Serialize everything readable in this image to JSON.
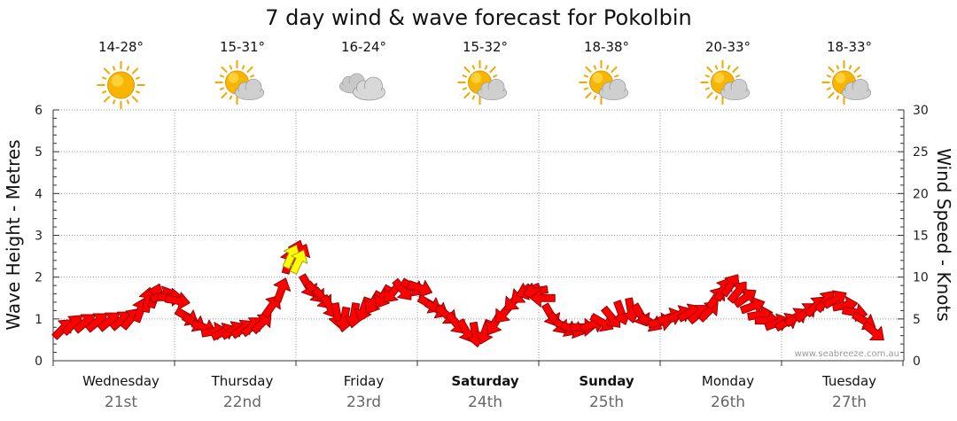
{
  "chart_data": {
    "type": "scatter",
    "title": "7 day wind & wave forecast for Pokolbin",
    "y_left_label": "Wave Height - Metres",
    "y_right_label": "Wind Speed - Knots",
    "y_left_range": [
      0,
      6
    ],
    "y_left_ticks": [
      "0",
      "1",
      "2",
      "3",
      "4",
      "5",
      "6"
    ],
    "y_right_range": [
      0,
      30
    ],
    "y_right_ticks": [
      "0",
      "5",
      "10",
      "15",
      "20",
      "25",
      "30"
    ],
    "grid": true,
    "credit": "www.seabreeze.com.au",
    "days": [
      {
        "name": "Wednesday",
        "date": "21st",
        "bold": false,
        "temp": "14-28°",
        "icon": "sunny-icon"
      },
      {
        "name": "Thursday",
        "date": "22nd",
        "bold": false,
        "temp": "15-31°",
        "icon": "partly-cloudy-icon"
      },
      {
        "name": "Friday",
        "date": "23rd",
        "bold": false,
        "temp": "16-24°",
        "icon": "cloudy-icon"
      },
      {
        "name": "Saturday",
        "date": "24th",
        "bold": true,
        "temp": "15-32°",
        "icon": "partly-cloudy-icon"
      },
      {
        "name": "Sunday",
        "date": "25th",
        "bold": true,
        "temp": "18-38°",
        "icon": "partly-cloudy-icon"
      },
      {
        "name": "Monday",
        "date": "26th",
        "bold": false,
        "temp": "20-33°",
        "icon": "partly-cloudy-icon"
      },
      {
        "name": "Tuesday",
        "date": "27th",
        "bold": false,
        "temp": "18-33°",
        "icon": "partly-cloudy-icon"
      }
    ],
    "series": [
      {
        "x_unit": "days from start of Wednesday",
        "y_unit": "knots",
        "points": [
          {
            "x": 0.02,
            "y": 3.8,
            "dir": 225
          },
          {
            "x": 0.1,
            "y": 4.3,
            "dir": 225
          },
          {
            "x": 0.2,
            "y": 4.5,
            "dir": 230
          },
          {
            "x": 0.3,
            "y": 4.6,
            "dir": 230
          },
          {
            "x": 0.4,
            "y": 4.7,
            "dir": 230
          },
          {
            "x": 0.5,
            "y": 4.8,
            "dir": 230
          },
          {
            "x": 0.58,
            "y": 5,
            "dir": 220
          },
          {
            "x": 0.66,
            "y": 6,
            "dir": 200
          },
          {
            "x": 0.72,
            "y": 7.2,
            "dir": 190
          },
          {
            "x": 0.78,
            "y": 7.7,
            "dir": 200
          },
          {
            "x": 0.84,
            "y": 7.8,
            "dir": 250
          },
          {
            "x": 0.9,
            "y": 7.6,
            "dir": 270
          },
          {
            "x": 0.96,
            "y": 7.2,
            "dir": 280
          },
          {
            "x": 1.04,
            "y": 5.3,
            "dir": 300
          },
          {
            "x": 1.1,
            "y": 4.6,
            "dir": 300
          },
          {
            "x": 1.18,
            "y": 4,
            "dir": 290
          },
          {
            "x": 1.26,
            "y": 3.5,
            "dir": 260
          },
          {
            "x": 1.34,
            "y": 3.4,
            "dir": 245
          },
          {
            "x": 1.42,
            "y": 3.6,
            "dir": 240
          },
          {
            "x": 1.5,
            "y": 3.8,
            "dir": 235
          },
          {
            "x": 1.58,
            "y": 4.1,
            "dir": 230
          },
          {
            "x": 1.66,
            "y": 4.5,
            "dir": 225
          },
          {
            "x": 1.74,
            "y": 6.5,
            "dir": 215
          },
          {
            "x": 1.82,
            "y": 8.4,
            "dir": 200
          },
          {
            "x": 1.88,
            "y": 11.8,
            "dir": 195
          },
          {
            "x": 1.94,
            "y": 12.9,
            "dir": 200
          },
          {
            "x": 1.98,
            "y": 12.5,
            "dir": 205
          },
          {
            "x": 2.04,
            "y": 9,
            "dir": 330
          },
          {
            "x": 2.1,
            "y": 8.2,
            "dir": 320
          },
          {
            "x": 2.16,
            "y": 7.5,
            "dir": 320
          },
          {
            "x": 2.22,
            "y": 6.5,
            "dir": 330
          },
          {
            "x": 2.28,
            "y": 5.5,
            "dir": 350
          },
          {
            "x": 2.34,
            "y": 5,
            "dir": 10
          },
          {
            "x": 2.42,
            "y": 5.5,
            "dir": 10
          },
          {
            "x": 2.5,
            "y": 6.2,
            "dir": 20
          },
          {
            "x": 2.58,
            "y": 7,
            "dir": 30
          },
          {
            "x": 2.66,
            "y": 7.7,
            "dir": 30
          },
          {
            "x": 2.74,
            "y": 8.2,
            "dir": 40
          },
          {
            "x": 2.82,
            "y": 8.5,
            "dir": 320
          },
          {
            "x": 2.9,
            "y": 8.8,
            "dir": 300
          },
          {
            "x": 2.96,
            "y": 8.7,
            "dir": 290
          },
          {
            "x": 3.04,
            "y": 6.8,
            "dir": 300
          },
          {
            "x": 3.1,
            "y": 6.2,
            "dir": 300
          },
          {
            "x": 3.18,
            "y": 5.5,
            "dir": 310
          },
          {
            "x": 3.26,
            "y": 4.5,
            "dir": 320
          },
          {
            "x": 3.34,
            "y": 3.6,
            "dir": 330
          },
          {
            "x": 3.42,
            "y": 3.2,
            "dir": 350
          },
          {
            "x": 3.5,
            "y": 3.5,
            "dir": 20
          },
          {
            "x": 3.58,
            "y": 4.5,
            "dir": 30
          },
          {
            "x": 3.66,
            "y": 5.8,
            "dir": 40
          },
          {
            "x": 3.74,
            "y": 7.2,
            "dir": 45
          },
          {
            "x": 3.8,
            "y": 8,
            "dir": 50
          },
          {
            "x": 3.86,
            "y": 8.4,
            "dir": 70
          },
          {
            "x": 3.92,
            "y": 8.3,
            "dir": 80
          },
          {
            "x": 3.98,
            "y": 7.5,
            "dir": 90
          },
          {
            "x": 4.04,
            "y": 5.5,
            "dir": 330
          },
          {
            "x": 4.1,
            "y": 4.5,
            "dir": 320
          },
          {
            "x": 4.16,
            "y": 4,
            "dir": 300
          },
          {
            "x": 4.22,
            "y": 3.8,
            "dir": 290
          },
          {
            "x": 4.3,
            "y": 4,
            "dir": 270
          },
          {
            "x": 4.38,
            "y": 4.3,
            "dir": 250
          },
          {
            "x": 4.46,
            "y": 4.6,
            "dir": 300
          },
          {
            "x": 4.54,
            "y": 5.2,
            "dir": 320
          },
          {
            "x": 4.62,
            "y": 5.8,
            "dir": 340
          },
          {
            "x": 4.7,
            "y": 6.1,
            "dir": 350
          },
          {
            "x": 4.78,
            "y": 5.5,
            "dir": 330
          },
          {
            "x": 4.86,
            "y": 4.6,
            "dir": 300
          },
          {
            "x": 4.94,
            "y": 4.6,
            "dir": 260
          },
          {
            "x": 5.02,
            "y": 5.2,
            "dir": 250
          },
          {
            "x": 5.1,
            "y": 5.5,
            "dir": 245
          },
          {
            "x": 5.18,
            "y": 5.7,
            "dir": 240
          },
          {
            "x": 5.26,
            "y": 5.6,
            "dir": 230
          },
          {
            "x": 5.34,
            "y": 5.9,
            "dir": 225
          },
          {
            "x": 5.4,
            "y": 7.5,
            "dir": 215
          },
          {
            "x": 5.46,
            "y": 8.5,
            "dir": 210
          },
          {
            "x": 5.52,
            "y": 9,
            "dir": 215
          },
          {
            "x": 5.58,
            "y": 8.2,
            "dir": 220
          },
          {
            "x": 5.64,
            "y": 7.5,
            "dir": 235
          },
          {
            "x": 5.7,
            "y": 6.5,
            "dir": 250
          },
          {
            "x": 5.76,
            "y": 5.5,
            "dir": 260
          },
          {
            "x": 5.82,
            "y": 4.8,
            "dir": 270
          },
          {
            "x": 5.9,
            "y": 4.5,
            "dir": 250
          },
          {
            "x": 5.98,
            "y": 4.6,
            "dir": 240
          },
          {
            "x": 6.06,
            "y": 5.2,
            "dir": 235
          },
          {
            "x": 6.14,
            "y": 5.8,
            "dir": 230
          },
          {
            "x": 6.22,
            "y": 6.5,
            "dir": 225
          },
          {
            "x": 6.3,
            "y": 7.1,
            "dir": 220
          },
          {
            "x": 6.38,
            "y": 7.3,
            "dir": 240
          },
          {
            "x": 6.46,
            "y": 6.6,
            "dir": 260
          },
          {
            "x": 6.54,
            "y": 5.8,
            "dir": 280
          },
          {
            "x": 6.62,
            "y": 4.8,
            "dir": 300
          },
          {
            "x": 6.7,
            "y": 3.5,
            "dir": 310
          }
        ],
        "highlight": [
          {
            "x": 1.9,
            "y": 12.4,
            "dir": 205
          },
          {
            "x": 1.96,
            "y": 11.8,
            "dir": 205
          }
        ]
      }
    ]
  }
}
